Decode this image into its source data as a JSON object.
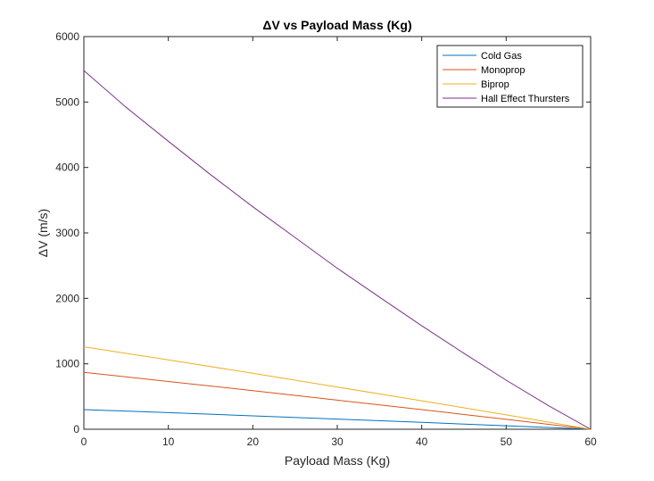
{
  "chart_data": {
    "type": "line",
    "title": "ΔV vs Payload Mass (Kg)",
    "xlabel": "Payload Mass (Kg)",
    "ylabel": "ΔV (m/s)",
    "xlim": [
      0,
      60
    ],
    "ylim": [
      0,
      6000
    ],
    "xticks": [
      0,
      10,
      20,
      30,
      40,
      50,
      60
    ],
    "yticks": [
      0,
      1000,
      2000,
      3000,
      4000,
      5000,
      6000
    ],
    "grid": false,
    "legend_position": "top-right",
    "series": [
      {
        "name": "Cold Gas",
        "color": "#0072BD",
        "x": [
          0,
          10,
          20,
          30,
          40,
          50,
          60
        ],
        "y": [
          300,
          253,
          204,
          155,
          105,
          53,
          0
        ]
      },
      {
        "name": "Monoprop",
        "color": "#D95319",
        "x": [
          0,
          10,
          20,
          30,
          40,
          50,
          60
        ],
        "y": [
          870,
          730,
          590,
          445,
          300,
          152,
          0
        ]
      },
      {
        "name": "Biprop",
        "color": "#EDB120",
        "x": [
          0,
          10,
          20,
          30,
          40,
          50,
          60
        ],
        "y": [
          1260,
          1060,
          855,
          645,
          435,
          220,
          0
        ]
      },
      {
        "name": "Hall Effect Thursters",
        "color": "#7E2F8E",
        "x": [
          0,
          5,
          10,
          15,
          20,
          25,
          30,
          35,
          40,
          45,
          50,
          55,
          60
        ],
        "y": [
          5480,
          4920,
          4400,
          3890,
          3400,
          2930,
          2460,
          2020,
          1580,
          1160,
          750,
          360,
          0
        ]
      }
    ]
  }
}
